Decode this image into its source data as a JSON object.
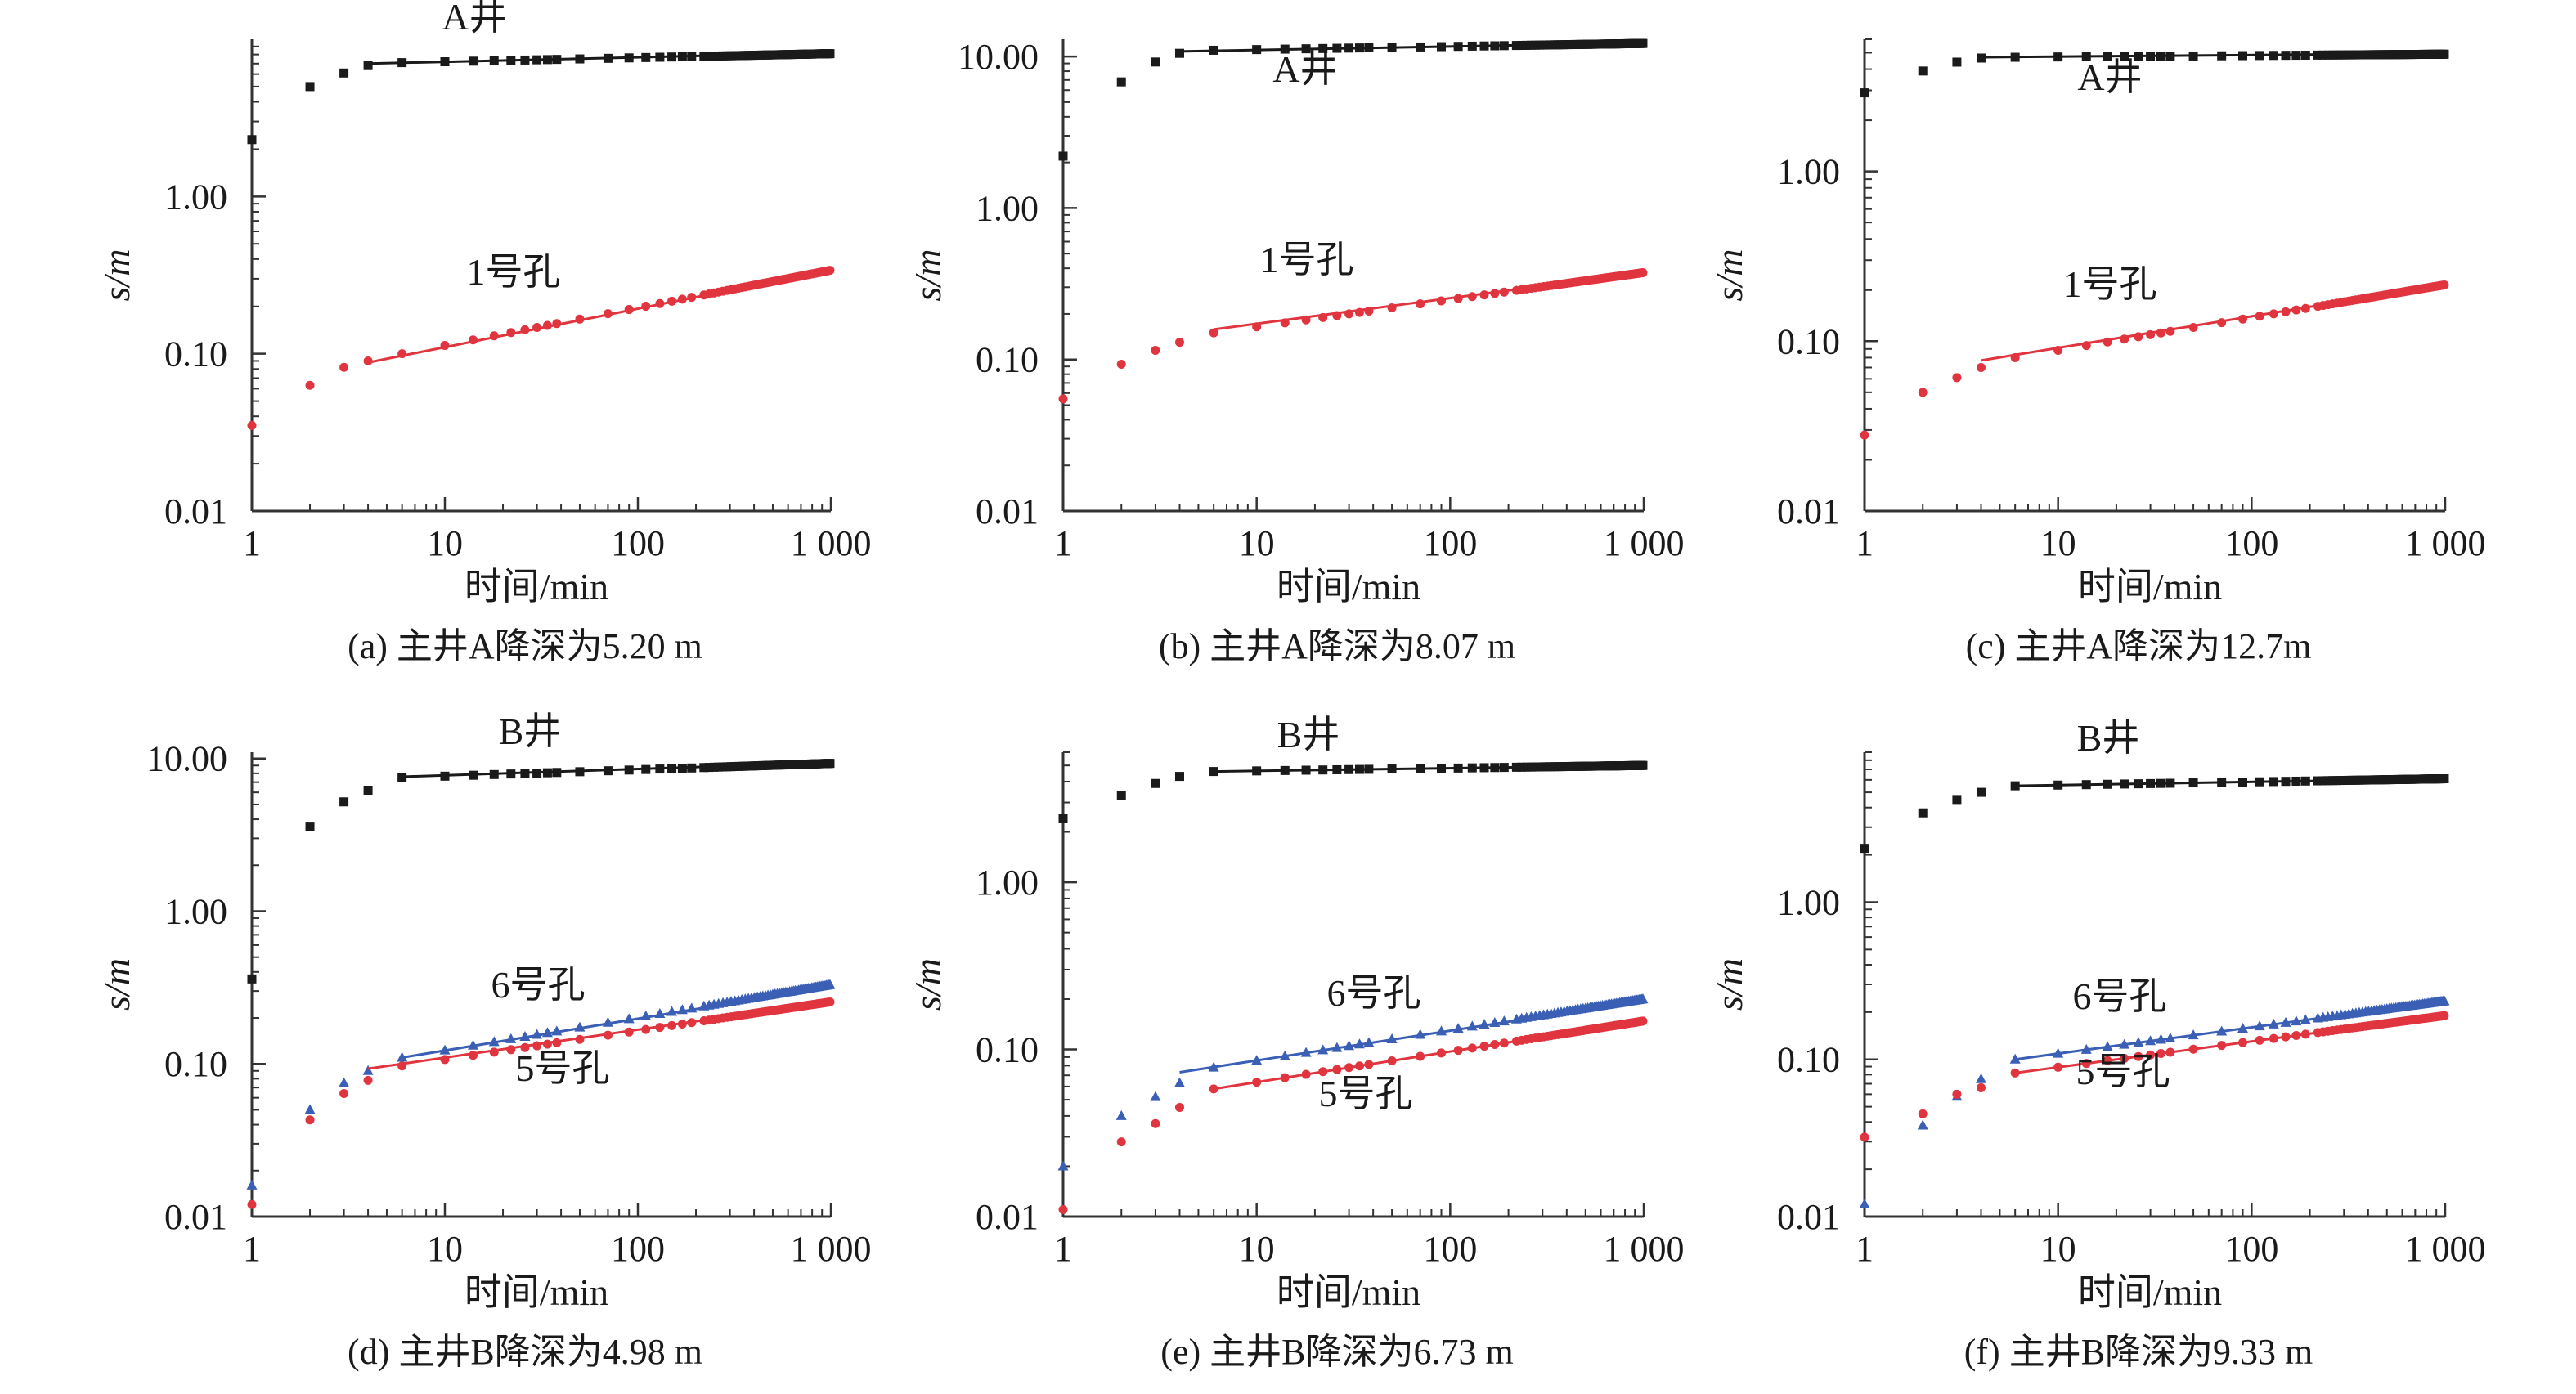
{
  "x_ticks": [
    "1",
    "10",
    "100",
    "1 000"
  ],
  "colors": {
    "black": "#1a1a1a",
    "red": "#e0343f",
    "blue": "#3a5fb5"
  },
  "chart_data": [
    {
      "id": "a",
      "type": "scatter",
      "caption": "(a) 主井A降深为5.20 m",
      "xlabel": "时间/min",
      "ylabel": "s/m",
      "x_scale": "log",
      "y_scale": "log",
      "xlim": [
        1,
        1000
      ],
      "ylim": [
        0.01,
        10
      ],
      "y_ticks": [
        "0.01",
        "0.10",
        "1.00"
      ],
      "y_tick_values": [
        0.01,
        0.1,
        1
      ],
      "series": [
        {
          "name": "A井",
          "marker": "square",
          "color": "#1a1a1a",
          "early_points": [
            [
              1,
              2.3
            ],
            [
              2,
              5.0
            ],
            [
              3,
              6.1
            ],
            [
              4,
              6.8
            ],
            [
              6,
              7.1
            ]
          ],
          "late_start": 6,
          "late_end": 1000,
          "late_from": 7.1,
          "late_to": 8.1,
          "fit": {
            "from": [
              4,
              7.0
            ],
            "to": [
              1000,
              8.2
            ]
          }
        },
        {
          "name": "1号孔",
          "marker": "circle",
          "color": "#e0343f",
          "early_points": [
            [
              1,
              0.035
            ],
            [
              2,
              0.063
            ],
            [
              3,
              0.082
            ],
            [
              4,
              0.09
            ],
            [
              6,
              0.1
            ]
          ],
          "late_start": 6,
          "late_end": 1000,
          "late_from": 0.1,
          "late_to": 0.34,
          "fit": {
            "from": [
              4,
              0.088
            ],
            "to": [
              1000,
              0.34
            ]
          }
        }
      ]
    },
    {
      "id": "b",
      "type": "scatter",
      "caption": "(b) 主井A降深为8.07 m",
      "xlabel": "时间/min",
      "ylabel": "s/m",
      "x_scale": "log",
      "y_scale": "log",
      "xlim": [
        1,
        1000
      ],
      "ylim": [
        0.01,
        13
      ],
      "y_ticks": [
        "0.01",
        "0.10",
        "1.00",
        "10.00"
      ],
      "y_tick_values": [
        0.01,
        0.1,
        1,
        10
      ],
      "series": [
        {
          "name": "A井",
          "marker": "square",
          "color": "#1a1a1a",
          "early_points": [
            [
              1,
              2.2
            ],
            [
              2,
              6.8
            ],
            [
              3,
              9.2
            ],
            [
              4,
              10.5
            ],
            [
              6,
              11.0
            ]
          ],
          "late_start": 6,
          "late_end": 1000,
          "late_from": 11.0,
          "late_to": 12.2,
          "fit": {
            "from": [
              4,
              10.8
            ],
            "to": [
              1000,
              12.3
            ]
          }
        },
        {
          "name": "1号孔",
          "marker": "circle",
          "color": "#e0343f",
          "early_points": [
            [
              1,
              0.055
            ],
            [
              2,
              0.093
            ],
            [
              3,
              0.115
            ],
            [
              4,
              0.13
            ],
            [
              6,
              0.15
            ]
          ],
          "late_start": 6,
          "late_end": 1000,
          "late_from": 0.15,
          "late_to": 0.375,
          "fit": {
            "from": [
              6,
              0.158
            ],
            "to": [
              1000,
              0.375
            ]
          }
        }
      ]
    },
    {
      "id": "c",
      "type": "scatter",
      "caption": "(c) 主井A降深为12.7m",
      "xlabel": "时间/min",
      "ylabel": "s/m",
      "x_scale": "log",
      "y_scale": "log",
      "xlim": [
        1,
        1000
      ],
      "ylim": [
        0.01,
        6
      ],
      "y_ticks": [
        "0.01",
        "0.10",
        "1.00"
      ],
      "y_tick_values": [
        0.01,
        0.1,
        1
      ],
      "series": [
        {
          "name": "A井",
          "marker": "square",
          "color": "#1a1a1a",
          "early_points": [
            [
              1,
              2.9
            ],
            [
              2,
              3.9
            ],
            [
              3,
              4.4
            ],
            [
              4,
              4.65
            ],
            [
              6,
              4.7
            ]
          ],
          "late_start": 6,
          "late_end": 1000,
          "late_from": 4.7,
          "late_to": 4.9,
          "fit": {
            "from": [
              4,
              4.7
            ],
            "to": [
              1000,
              4.95
            ]
          }
        },
        {
          "name": "1号孔",
          "marker": "circle",
          "color": "#e0343f",
          "early_points": [
            [
              1,
              0.028
            ],
            [
              2,
              0.05
            ],
            [
              3,
              0.061
            ],
            [
              4,
              0.07
            ],
            [
              6,
              0.08
            ]
          ],
          "late_start": 6,
          "late_end": 1000,
          "late_from": 0.08,
          "late_to": 0.215,
          "fit": {
            "from": [
              4,
              0.077
            ],
            "to": [
              1000,
              0.215
            ]
          }
        }
      ]
    },
    {
      "id": "d",
      "type": "scatter",
      "caption": "(d) 主井B降深为4.98 m",
      "xlabel": "时间/min",
      "ylabel": "s/m",
      "x_scale": "log",
      "y_scale": "log",
      "xlim": [
        1,
        1000
      ],
      "ylim": [
        0.01,
        11
      ],
      "y_ticks": [
        "0.01",
        "0.10",
        "1.00",
        "10.00"
      ],
      "y_tick_values": [
        0.01,
        0.1,
        1,
        10
      ],
      "series": [
        {
          "name": "B井",
          "marker": "square",
          "color": "#1a1a1a",
          "early_points": [
            [
              1,
              0.36
            ],
            [
              2,
              3.6
            ],
            [
              3,
              5.2
            ],
            [
              4,
              6.2
            ],
            [
              6,
              7.5
            ]
          ],
          "late_start": 6,
          "late_end": 1000,
          "late_from": 7.5,
          "late_to": 9.3,
          "fit": {
            "from": [
              6,
              7.6
            ],
            "to": [
              1000,
              9.4
            ]
          }
        },
        {
          "name": "6号孔",
          "marker": "triangle",
          "color": "#3a5fb5",
          "early_points": [
            [
              1,
              0.016
            ],
            [
              2,
              0.05
            ],
            [
              3,
              0.075
            ],
            [
              4,
              0.09
            ],
            [
              6,
              0.11
            ]
          ],
          "late_start": 6,
          "late_end": 1000,
          "late_from": 0.11,
          "late_to": 0.33,
          "fit": {
            "from": [
              6,
              0.11
            ],
            "to": [
              1000,
              0.32
            ]
          }
        },
        {
          "name": "5号孔",
          "marker": "circle",
          "color": "#e0343f",
          "early_points": [
            [
              1,
              0.012
            ],
            [
              2,
              0.043
            ],
            [
              3,
              0.064
            ],
            [
              4,
              0.078
            ],
            [
              6,
              0.097
            ]
          ],
          "late_start": 6,
          "late_end": 1000,
          "late_from": 0.097,
          "late_to": 0.255,
          "fit": {
            "from": [
              4,
              0.093
            ],
            "to": [
              1000,
              0.255
            ]
          }
        }
      ]
    },
    {
      "id": "e",
      "type": "scatter",
      "caption": "(e) 主井B降深为6.73 m",
      "xlabel": "时间/min",
      "ylabel": "s/m",
      "x_scale": "log",
      "y_scale": "log",
      "xlim": [
        1,
        1000
      ],
      "ylim": [
        0.01,
        6
      ],
      "y_ticks": [
        "0.01",
        "0.10",
        "1.00"
      ],
      "y_tick_values": [
        0.01,
        0.1,
        1
      ],
      "series": [
        {
          "name": "B井",
          "marker": "square",
          "color": "#1a1a1a",
          "early_points": [
            [
              1,
              2.4
            ],
            [
              2,
              3.3
            ],
            [
              3,
              3.9
            ],
            [
              4,
              4.3
            ],
            [
              6,
              4.6
            ]
          ],
          "late_start": 6,
          "late_end": 1000,
          "late_from": 4.6,
          "late_to": 5.0,
          "fit": {
            "from": [
              6,
              4.6
            ],
            "to": [
              1000,
              5.0
            ]
          }
        },
        {
          "name": "6号孔",
          "marker": "triangle",
          "color": "#3a5fb5",
          "early_points": [
            [
              1,
              0.02
            ],
            [
              2,
              0.04
            ],
            [
              3,
              0.052
            ],
            [
              4,
              0.063
            ],
            [
              6,
              0.078
            ]
          ],
          "late_start": 6,
          "late_end": 1000,
          "late_from": 0.078,
          "late_to": 0.2,
          "fit": {
            "from": [
              4,
              0.073
            ],
            "to": [
              1000,
              0.195
            ]
          }
        },
        {
          "name": "5号孔",
          "marker": "circle",
          "color": "#e0343f",
          "early_points": [
            [
              1,
              0.011
            ],
            [
              2,
              0.028
            ],
            [
              3,
              0.036
            ],
            [
              4,
              0.045
            ],
            [
              6,
              0.058
            ]
          ],
          "late_start": 6,
          "late_end": 1000,
          "late_from": 0.058,
          "late_to": 0.148,
          "fit": {
            "from": [
              6,
              0.058
            ],
            "to": [
              1000,
              0.148
            ]
          }
        }
      ]
    },
    {
      "id": "f",
      "type": "scatter",
      "caption": "(f) 主井B降深为9.33 m",
      "xlabel": "时间/min",
      "ylabel": "s/m",
      "x_scale": "log",
      "y_scale": "log",
      "xlim": [
        1,
        1000
      ],
      "ylim": [
        0.01,
        9
      ],
      "y_ticks": [
        "0.01",
        "0.10",
        "1.00"
      ],
      "y_tick_values": [
        0.01,
        0.1,
        1
      ],
      "series": [
        {
          "name": "B井",
          "marker": "square",
          "color": "#1a1a1a",
          "early_points": [
            [
              1,
              2.2
            ],
            [
              2,
              3.7
            ],
            [
              3,
              4.5
            ],
            [
              4,
              5.0
            ],
            [
              6,
              5.5
            ]
          ],
          "late_start": 6,
          "late_end": 1000,
          "late_from": 5.5,
          "late_to": 6.1,
          "fit": {
            "from": [
              6,
              5.5
            ],
            "to": [
              1000,
              6.1
            ]
          }
        },
        {
          "name": "6号孔",
          "marker": "triangle",
          "color": "#3a5fb5",
          "early_points": [
            [
              1,
              0.012
            ],
            [
              2,
              0.038
            ],
            [
              3,
              0.058
            ],
            [
              4,
              0.075
            ],
            [
              6,
              0.1
            ]
          ],
          "late_start": 6,
          "late_end": 1000,
          "late_from": 0.1,
          "late_to": 0.235,
          "fit": {
            "from": [
              6,
              0.1
            ],
            "to": [
              1000,
              0.235
            ]
          }
        },
        {
          "name": "5号孔",
          "marker": "circle",
          "color": "#e0343f",
          "early_points": [
            [
              1,
              0.032
            ],
            [
              2,
              0.045
            ],
            [
              3,
              0.06
            ],
            [
              4,
              0.066
            ],
            [
              6,
              0.082
            ]
          ],
          "late_start": 6,
          "late_end": 1000,
          "late_from": 0.082,
          "late_to": 0.19,
          "fit": {
            "from": [
              6,
              0.082
            ],
            "to": [
              1000,
              0.19
            ]
          }
        }
      ]
    }
  ]
}
